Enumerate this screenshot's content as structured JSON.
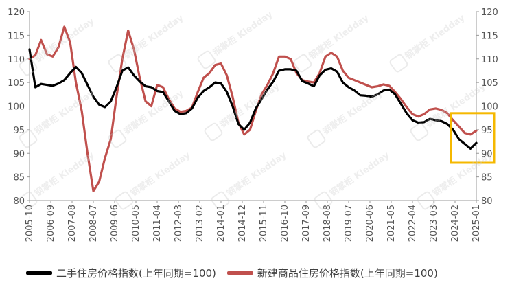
{
  "chart_data": {
    "type": "line",
    "title": "",
    "xlabel": "",
    "ylabel": "",
    "ylim": [
      80,
      120
    ],
    "y2lim": [
      80,
      120
    ],
    "yticks": [
      80,
      85,
      90,
      95,
      100,
      105,
      110,
      115,
      120
    ],
    "grid": false,
    "legend_position": "bottom",
    "xtick_labels": [
      "2005-10",
      "2006-09",
      "2007-08",
      "2008-07",
      "2009-06",
      "2010-05",
      "2011-04",
      "2012-03",
      "2013-02",
      "2014-01",
      "2014-12",
      "2015-11",
      "2016-10",
      "2017-09",
      "2018-08",
      "2019-07",
      "2020-06",
      "2021-05",
      "2022-04",
      "2023-03",
      "2024-02",
      "2025-01"
    ],
    "x": [
      "2005-10",
      "2006-01",
      "2006-04",
      "2006-07",
      "2006-10",
      "2007-01",
      "2007-04",
      "2007-07",
      "2007-10",
      "2008-01",
      "2008-04",
      "2008-07",
      "2008-10",
      "2009-01",
      "2009-04",
      "2009-07",
      "2009-10",
      "2010-01",
      "2010-04",
      "2010-07",
      "2010-10",
      "2011-01",
      "2011-04",
      "2011-07",
      "2011-10",
      "2012-01",
      "2012-04",
      "2012-07",
      "2012-10",
      "2013-01",
      "2013-04",
      "2013-07",
      "2013-10",
      "2014-01",
      "2014-04",
      "2014-07",
      "2014-10",
      "2015-01",
      "2015-04",
      "2015-07",
      "2015-10",
      "2016-01",
      "2016-04",
      "2016-07",
      "2016-10",
      "2017-01",
      "2017-04",
      "2017-07",
      "2017-10",
      "2018-01",
      "2018-04",
      "2018-07",
      "2018-10",
      "2019-01",
      "2019-04",
      "2019-07",
      "2019-10",
      "2020-01",
      "2020-04",
      "2020-07",
      "2020-10",
      "2021-01",
      "2021-04",
      "2021-07",
      "2021-10",
      "2022-01",
      "2022-04",
      "2022-07",
      "2022-10",
      "2023-01",
      "2023-04",
      "2023-07",
      "2023-10",
      "2024-01",
      "2024-04",
      "2024-07",
      "2024-10",
      "2025-01"
    ],
    "series": [
      {
        "name": "二手住房价格指数(上年同期=100)",
        "color": "#000000",
        "values": [
          112,
          104,
          104.7,
          104.5,
          104.3,
          104.8,
          105.5,
          107,
          108.3,
          107,
          104.5,
          102,
          100.3,
          99.8,
          101,
          104,
          107.5,
          108.2,
          106.5,
          105.2,
          104.2,
          104,
          103.2,
          103,
          101,
          99,
          98.3,
          98.5,
          99.5,
          101.8,
          103.2,
          104,
          105,
          104.8,
          103,
          100,
          96.2,
          95,
          96.5,
          99.5,
          101.5,
          103.5,
          105.2,
          107.5,
          107.8,
          107.8,
          107.5,
          105.3,
          104.8,
          104.2,
          106.5,
          107.7,
          108,
          107.3,
          105,
          104,
          103.3,
          102.3,
          102.2,
          102,
          102.5,
          103.3,
          103.5,
          102.5,
          100.5,
          98.5,
          97,
          96.5,
          96.6,
          97.3,
          97,
          96.8,
          96.2,
          95,
          93,
          92,
          91,
          92.2
        ]
      },
      {
        "name": "新建商品住房价格指数(上年同期=100)",
        "color": "#c0504d",
        "values": [
          110,
          110.8,
          114,
          111,
          110.5,
          112.5,
          116.8,
          113.5,
          105,
          99,
          90,
          82,
          84,
          89,
          93,
          102,
          110,
          116,
          112,
          106,
          101,
          100,
          104.5,
          104,
          101.5,
          99.5,
          98.8,
          99,
          99.7,
          103,
          106,
          107,
          108.7,
          109,
          106.5,
          102,
          96.5,
          94,
          95,
          99,
          102.5,
          104.5,
          107,
          110.5,
          110.5,
          110,
          107,
          105.5,
          105.2,
          105,
          107,
          110.5,
          111.3,
          110.5,
          107.5,
          106,
          105.5,
          105,
          104.5,
          104,
          104.2,
          104.6,
          104.3,
          103,
          101.5,
          99.8,
          98.3,
          97.8,
          98.3,
          99.3,
          99.5,
          99.2,
          98.5,
          97,
          95.7,
          94.3,
          94,
          94.8
        ]
      }
    ],
    "highlight_box": {
      "from": "2024-02",
      "to": "2025-01",
      "y_range": [
        88,
        98.5
      ],
      "color": "#f5b800"
    }
  },
  "watermark": {
    "text": "钢掌柜",
    "subtext": "Kledday",
    "color": "#cfcfcf"
  }
}
